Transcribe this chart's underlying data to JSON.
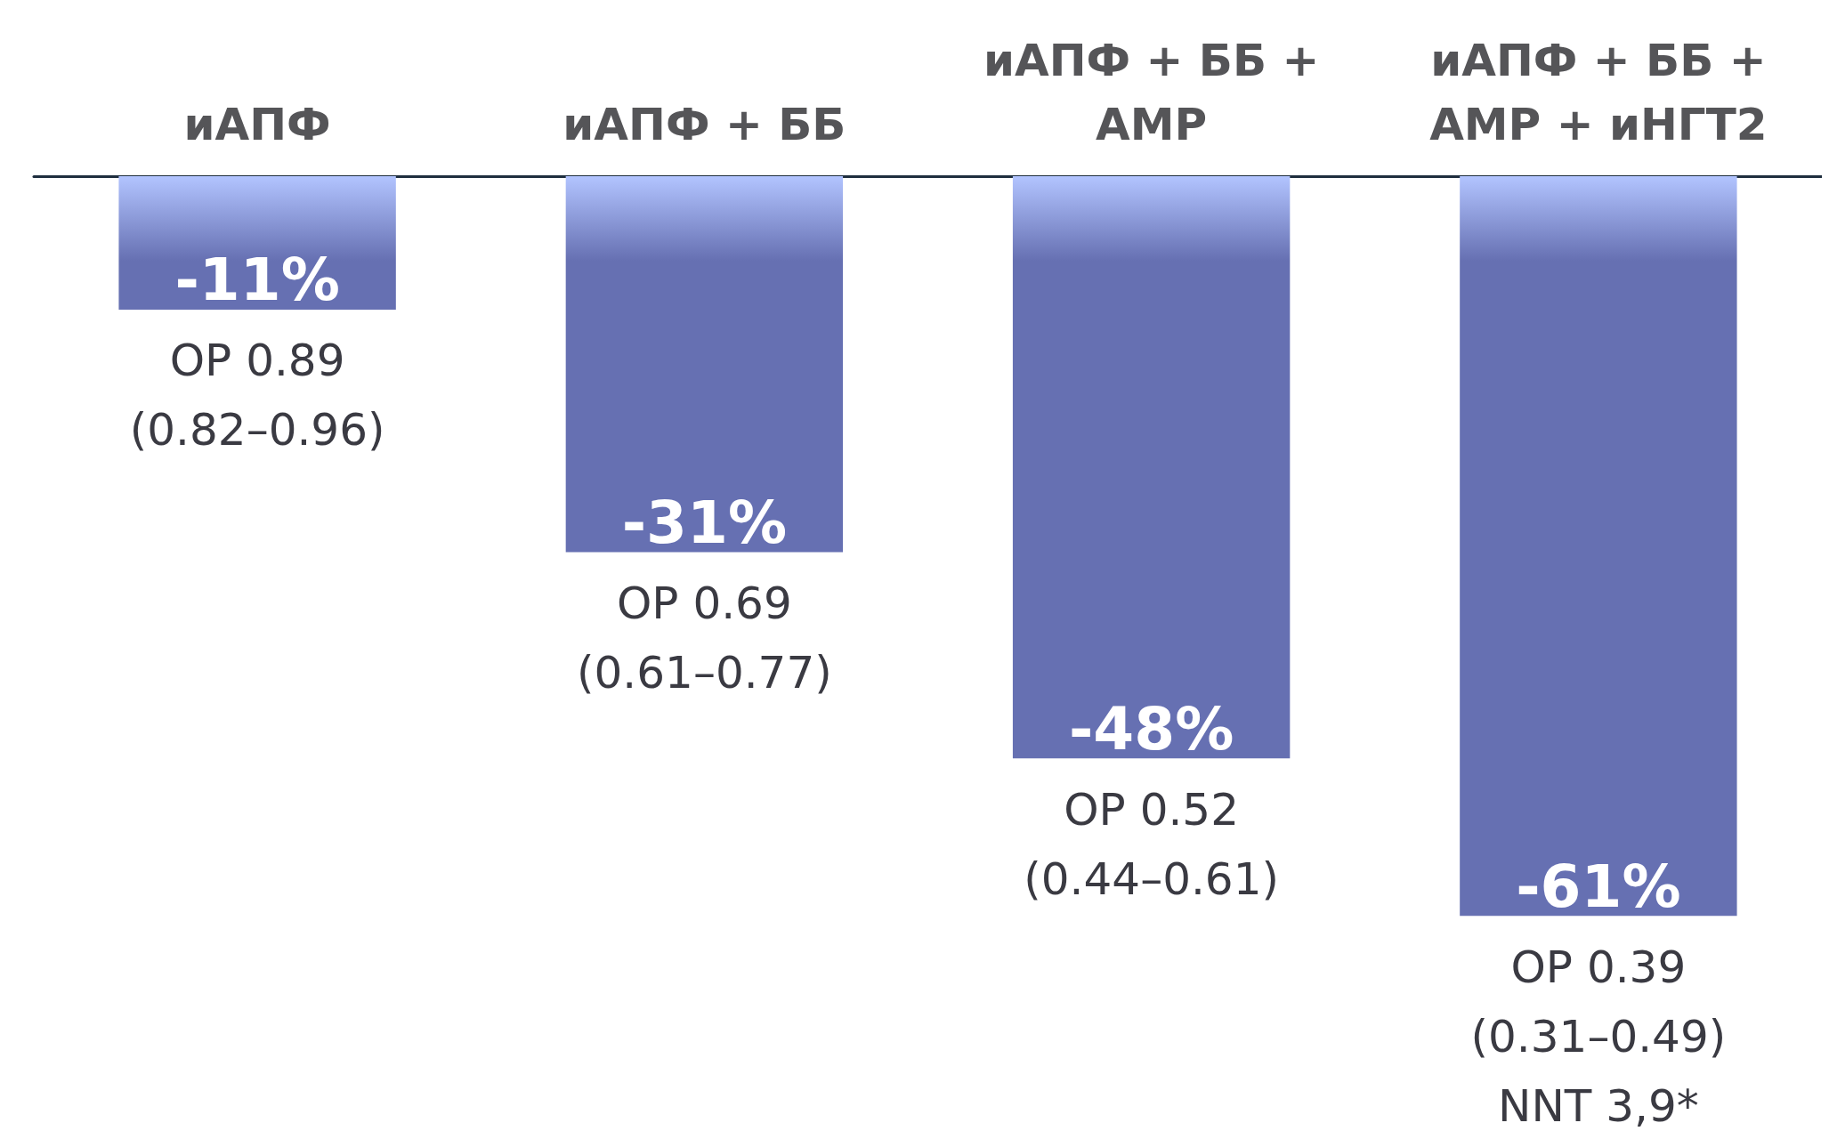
{
  "chart_data": {
    "type": "bar",
    "categories": [
      "иАПФ",
      "иАПФ + ББ",
      "иАПФ + ББ +\nАМР",
      "иАПФ + ББ +\nАМР + иНГТ2"
    ],
    "values": [
      -11,
      -31,
      -48,
      -61
    ],
    "value_labels": [
      "-11%",
      "-31%",
      "-48%",
      "-61%"
    ],
    "color": "#6670b2",
    "annotations": [
      {
        "text": "ОР 0.89\n(0.82–0.96)",
        "x": "иАПФ",
        "y": -11
      },
      {
        "text": "ОР 0.69\n(0.61–0.77)",
        "x": "иАПФ + ББ",
        "y": -31
      },
      {
        "text": "ОР 0.52\n(0.44–0.61)",
        "x": "иАПФ + ББ +\nАМР",
        "y": -48
      },
      {
        "text": "ОР 0.39\n(0.31–0.49)\nNNT 3,9*",
        "x": "иАПФ + ББ +\nАМР + иНГТ2",
        "y": -61
      }
    ],
    "data_labels": false
  }
}
